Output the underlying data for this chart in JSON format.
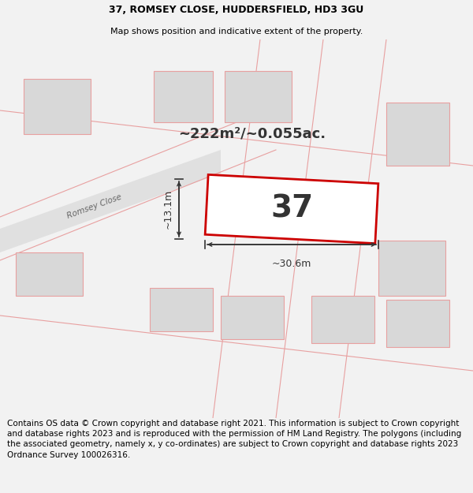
{
  "title_line1": "37, ROMSEY CLOSE, HUDDERSFIELD, HD3 3GU",
  "title_line2": "Map shows position and indicative extent of the property.",
  "footer_text": "Contains OS data © Crown copyright and database right 2021. This information is subject to Crown copyright and database rights 2023 and is reproduced with the permission of HM Land Registry. The polygons (including the associated geometry, namely x, y co-ordinates) are subject to Crown copyright and database rights 2023 Ordnance Survey 100026316.",
  "area_text": "~222m²/~0.055ac.",
  "property_label": "37",
  "dim_width": "~30.6m",
  "dim_height": "~13.1m",
  "road_label": "Romsey Close",
  "bg_color": "#f2f2f2",
  "map_bg": "#f2f2f2",
  "prop_fill": "#ffffff",
  "prop_edge": "#cc0000",
  "road_fill": "#e8e8e8",
  "bld_fill": "#d8d8d8",
  "bld_edge": "#e8a0a0",
  "line_color": "#e8a0a0",
  "dim_color": "#333333",
  "title_fs": 9,
  "sub_fs": 8,
  "footer_fs": 7.5
}
